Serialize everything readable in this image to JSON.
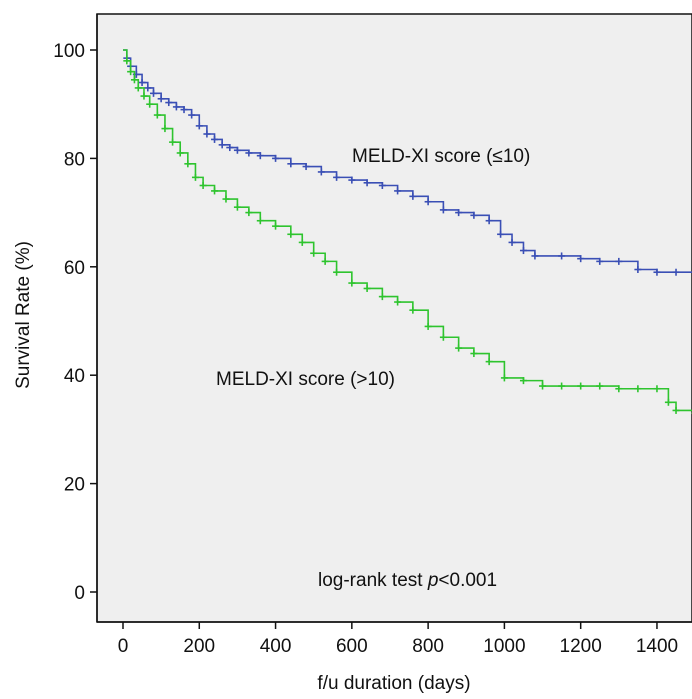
{
  "chart_data": {
    "type": "line",
    "title": "",
    "xlabel": "f/u duration (days)",
    "ylabel": "Survival Rate (%)",
    "xlim": [
      -40,
      1530
    ],
    "ylim": [
      -5,
      105
    ],
    "xticks": [
      0,
      200,
      400,
      600,
      800,
      1000,
      1200,
      1400
    ],
    "yticks": [
      0,
      20,
      40,
      60,
      80,
      100
    ],
    "grid": false,
    "legend": "none",
    "annotations": {
      "group_low": "MELD-XI score (≤10)",
      "group_high": "MELD-XI score (>10)",
      "test_prefix": "log-rank test ",
      "test_p": "p",
      "test_suffix": "<0.001"
    },
    "series": [
      {
        "name": "MELD-XI score (≤10)",
        "color": "#3a4fb5",
        "step": true,
        "x": [
          0,
          10,
          20,
          35,
          50,
          65,
          80,
          100,
          120,
          140,
          160,
          180,
          200,
          220,
          240,
          260,
          280,
          300,
          330,
          360,
          400,
          440,
          480,
          520,
          560,
          600,
          640,
          680,
          720,
          760,
          800,
          840,
          880,
          920,
          960,
          990,
          1020,
          1050,
          1080,
          1150,
          1200,
          1250,
          1300,
          1350,
          1400,
          1450,
          1500
        ],
        "y": [
          100,
          98.5,
          97,
          95.5,
          94,
          93,
          92,
          91,
          90.3,
          89.5,
          89,
          88,
          86,
          84.5,
          83.5,
          82.5,
          82,
          81.5,
          81,
          80.5,
          80,
          79,
          78.5,
          77.5,
          76.5,
          76,
          75.5,
          75,
          74,
          73,
          72,
          70.5,
          70,
          69.5,
          68.5,
          66,
          64.5,
          63,
          62,
          62,
          61.5,
          61,
          61,
          59.5,
          59,
          59,
          59
        ]
      },
      {
        "name": "MELD-XI score (>10)",
        "color": "#2ec42e",
        "step": true,
        "x": [
          0,
          10,
          20,
          30,
          40,
          55,
          70,
          90,
          110,
          130,
          150,
          170,
          190,
          210,
          240,
          270,
          300,
          330,
          360,
          400,
          440,
          470,
          500,
          530,
          560,
          600,
          640,
          680,
          720,
          760,
          800,
          840,
          880,
          920,
          960,
          1000,
          1050,
          1100,
          1150,
          1200,
          1250,
          1300,
          1350,
          1400,
          1430,
          1450,
          1500
        ],
        "y": [
          100,
          98,
          96,
          94.5,
          93,
          91.5,
          90,
          88,
          85.5,
          83,
          81,
          79,
          76.5,
          75,
          74,
          72.5,
          71,
          70,
          68.5,
          67.5,
          66,
          64.5,
          62.5,
          61,
          59,
          57,
          56,
          54.5,
          53.5,
          52,
          49,
          47,
          45,
          44,
          42.5,
          39.5,
          39,
          38,
          38,
          38,
          38,
          37.5,
          37.5,
          37.5,
          35,
          33.5,
          33
        ]
      }
    ]
  }
}
